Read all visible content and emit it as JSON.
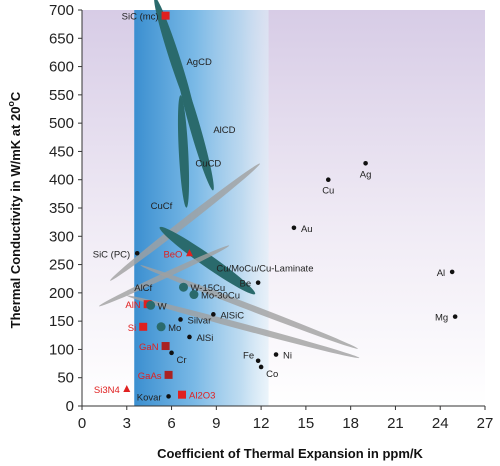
{
  "chart_data": {
    "type": "scatter",
    "xlabel": "Coefficient of Thermal Expansion in ppm/K",
    "ylabel": "Thermal Conductivity in W/mK at 20",
    "ylabel_superscript": "o",
    "ylabel_suffix": "C",
    "xlim": [
      0,
      27
    ],
    "ylim": [
      0,
      700
    ],
    "xticks": [
      0,
      3,
      6,
      9,
      12,
      15,
      18,
      21,
      24,
      27
    ],
    "yticks": [
      0,
      50,
      100,
      150,
      200,
      250,
      300,
      350,
      400,
      450,
      500,
      550,
      600,
      650,
      700
    ],
    "band": {
      "x_start": 3.5,
      "x_end": 12.5,
      "color": "#4a9fd8"
    },
    "points": [
      {
        "label": "SiC (mc)",
        "x": 5.6,
        "y": 690,
        "marker": "square",
        "color": "#e02020",
        "label_color": "#222222",
        "label_side": "left"
      },
      {
        "label": "Ag",
        "x": 19.0,
        "y": 429,
        "marker": "circle",
        "color": "#111111",
        "label_color": "#222222",
        "label_side": "below"
      },
      {
        "label": "Cu",
        "x": 16.5,
        "y": 400,
        "marker": "circle",
        "color": "#111111",
        "label_color": "#222222",
        "label_side": "below"
      },
      {
        "label": "Au",
        "x": 14.2,
        "y": 315,
        "marker": "circle",
        "color": "#111111",
        "label_color": "#222222",
        "label_side": "right"
      },
      {
        "label": "SiC (PC)",
        "x": 3.7,
        "y": 270,
        "marker": "circle",
        "color": "#111111",
        "label_color": "#222222",
        "label_side": "left"
      },
      {
        "label": "BeO",
        "x": 7.2,
        "y": 270,
        "marker": "triangle",
        "color": "#e02020",
        "label_color": "#e02020",
        "label_side": "left"
      },
      {
        "label": "Al",
        "x": 24.8,
        "y": 237,
        "marker": "circle",
        "color": "#111111",
        "label_color": "#222222",
        "label_side": "left"
      },
      {
        "label": "Be",
        "x": 11.8,
        "y": 218,
        "marker": "circle",
        "color": "#111111",
        "label_color": "#222222",
        "label_side": "left"
      },
      {
        "label": "W-15Cu",
        "x": 6.8,
        "y": 210,
        "marker": "big-circle",
        "color": "#2a6a6c",
        "label_color": "#222222",
        "label_side": "right"
      },
      {
        "label": "Mo-30Cu",
        "x": 7.5,
        "y": 197,
        "marker": "big-circle",
        "color": "#2a6a6c",
        "label_color": "#222222",
        "label_side": "right"
      },
      {
        "label": "AlN",
        "x": 4.4,
        "y": 180,
        "marker": "square",
        "color": "#e02020",
        "label_color": "#e02020",
        "label_side": "left"
      },
      {
        "label": "W",
        "x": 4.6,
        "y": 178,
        "marker": "big-circle",
        "color": "#2a6a6c",
        "label_color": "#222222",
        "label_side": "right"
      },
      {
        "label": "Mg",
        "x": 25.0,
        "y": 158,
        "marker": "circle",
        "color": "#111111",
        "label_color": "#222222",
        "label_side": "left"
      },
      {
        "label": "AlSiC",
        "x": 8.8,
        "y": 162,
        "marker": "circle",
        "color": "#111111",
        "label_color": "#222222",
        "label_side": "right"
      },
      {
        "label": "Silvar",
        "x": 6.6,
        "y": 153,
        "marker": "circle",
        "color": "#111111",
        "label_color": "#222222",
        "label_side": "right"
      },
      {
        "label": "Si",
        "x": 4.1,
        "y": 140,
        "marker": "square",
        "color": "#e02020",
        "label_color": "#e02020",
        "label_side": "left"
      },
      {
        "label": "Mo",
        "x": 5.3,
        "y": 140,
        "marker": "big-circle",
        "color": "#2a6a6c",
        "label_color": "#222222",
        "label_side": "right"
      },
      {
        "label": "AlSi",
        "x": 7.2,
        "y": 122,
        "marker": "circle",
        "color": "#111111",
        "label_color": "#222222",
        "label_side": "right"
      },
      {
        "label": "GaN",
        "x": 5.6,
        "y": 106,
        "marker": "square",
        "color": "#aa2222",
        "label_color": "#e02020",
        "label_side": "left"
      },
      {
        "label": "Fe",
        "x": 11.8,
        "y": 80,
        "marker": "circle",
        "color": "#111111",
        "label_color": "#222222",
        "label_side": "left-above"
      },
      {
        "label": "Ni",
        "x": 13.0,
        "y": 91,
        "marker": "circle",
        "color": "#111111",
        "label_color": "#222222",
        "label_side": "right"
      },
      {
        "label": "Cr",
        "x": 6.0,
        "y": 94,
        "marker": "circle",
        "color": "#111111",
        "label_color": "#222222",
        "label_side": "right-below"
      },
      {
        "label": "Co",
        "x": 12.0,
        "y": 69,
        "marker": "circle",
        "color": "#111111",
        "label_color": "#222222",
        "label_side": "right-below"
      },
      {
        "label": "GaAs",
        "x": 5.8,
        "y": 55,
        "marker": "square",
        "color": "#aa2222",
        "label_color": "#e02020",
        "label_side": "left"
      },
      {
        "label": "Si3N4",
        "x": 3.0,
        "y": 30,
        "marker": "triangle",
        "color": "#e02020",
        "label_color": "#e02020",
        "label_side": "left",
        "subscripts": true
      },
      {
        "label": "Kovar",
        "x": 5.8,
        "y": 17,
        "marker": "circle",
        "color": "#111111",
        "label_color": "#222222",
        "label_side": "left"
      },
      {
        "label": "Al2O3",
        "x": 6.7,
        "y": 20,
        "marker": "square",
        "color": "#e02020",
        "label_color": "#e02020",
        "label_side": "right",
        "subscripts": true
      }
    ],
    "ellipses": [
      {
        "label": "AgCD",
        "cx": 6.2,
        "cy": 615,
        "rx": 1.0,
        "ry": 3.3,
        "angle": 18,
        "color": "#2a6a6c",
        "label_x": 7.0,
        "label_y": 610
      },
      {
        "label": "AlCD",
        "cx": 7.6,
        "cy": 490,
        "rx": 1.0,
        "ry": 3.3,
        "angle": 16,
        "color": "#2a6a6c",
        "label_x": 8.8,
        "label_y": 490
      },
      {
        "label": "CuCD",
        "cx": 6.8,
        "cy": 450,
        "rx": 0.9,
        "ry": 2.9,
        "angle": 3,
        "color": "#2a6a6c",
        "label_x": 7.6,
        "label_y": 430
      },
      {
        "label": "CuCf",
        "cx": 6.9,
        "cy": 325,
        "rx": 0.7,
        "ry": 4.9,
        "angle": -52,
        "color": "#a0a0a0",
        "label_x": 4.6,
        "label_y": 355,
        "subscript_f": true
      },
      {
        "label": "Cu/MoCu/Cu-Laminate",
        "cx": 8.4,
        "cy": 257,
        "rx": 1.2,
        "ry": 3.0,
        "angle": 55,
        "color": "#2a6a6c",
        "label_x": 9.0,
        "label_y": 245
      },
      {
        "label": "AlCf",
        "cx": 5.5,
        "cy": 230,
        "rx": 0.55,
        "ry": 3.7,
        "angle": -65,
        "color": "#a0a0a0",
        "label_x": 3.5,
        "label_y": 210,
        "subscript_f": true
      },
      {
        "label": "",
        "cx": 11.2,
        "cy": 175,
        "rx": 0.6,
        "ry": 6.0,
        "angle": 69,
        "color": "#a0a0a0"
      },
      {
        "label": "",
        "cx": 10.8,
        "cy": 140,
        "rx": 0.6,
        "ry": 6.2,
        "angle": 75,
        "color": "#a0a0a0"
      }
    ]
  }
}
